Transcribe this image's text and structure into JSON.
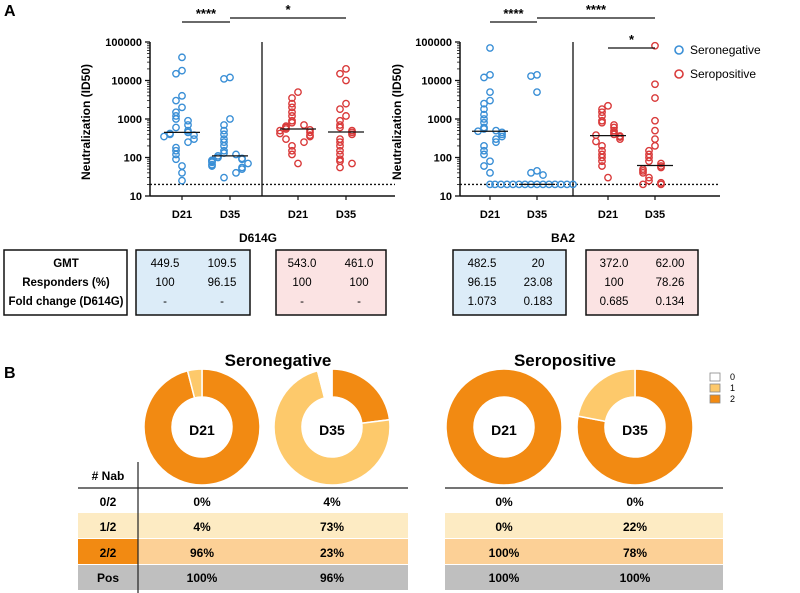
{
  "panel_a": {
    "label": "A",
    "legend": [
      {
        "name": "Seronegative",
        "color": "#3a8fd6"
      },
      {
        "name": "Seropositive",
        "color": "#d93a3a"
      }
    ],
    "tables": [
      {
        "title": "D614G",
        "row_labels": [
          "GMT",
          "Responders (%)",
          "Fold change (D614G)"
        ],
        "seronegative": [
          [
            "449.5",
            "109.5"
          ],
          [
            "100",
            "96.15"
          ],
          [
            "-",
            "-"
          ]
        ],
        "seropositive": [
          [
            "543.0",
            "461.0"
          ],
          [
            "100",
            "100"
          ],
          [
            "-",
            "-"
          ]
        ]
      },
      {
        "title": "BA2",
        "seronegative": [
          [
            "482.5",
            "20"
          ],
          [
            "96.15",
            "23.08"
          ],
          [
            "1.073",
            "0.183"
          ]
        ],
        "seropositive": [
          [
            "372.0",
            "62.00"
          ],
          [
            "100",
            "78.26"
          ],
          [
            "0.685",
            "0.134"
          ]
        ]
      }
    ]
  },
  "panel_b": {
    "label": "B",
    "legend": [
      {
        "name": "0",
        "color": "#ffffff"
      },
      {
        "name": "1",
        "color": "#fdc96b"
      },
      {
        "name": "2",
        "color": "#f28a12"
      }
    ],
    "row_header": "# Nab",
    "row_labels": [
      "0/2",
      "1/2",
      "2/2",
      "Pos"
    ],
    "groups": [
      {
        "title": "Seronegative",
        "donuts": [
          {
            "label": "D21",
            "values": [
              0,
              4,
              96
            ]
          },
          {
            "label": "D35",
            "values": [
              4,
              73,
              23
            ]
          }
        ],
        "table": [
          [
            "0%",
            "4%"
          ],
          [
            "4%",
            "73%"
          ],
          [
            "96%",
            "23%"
          ],
          [
            "100%",
            "96%"
          ]
        ]
      },
      {
        "title": "Seropositive",
        "donuts": [
          {
            "label": "D21",
            "values": [
              0,
              0,
              100
            ]
          },
          {
            "label": "D35",
            "values": [
              0,
              22,
              78
            ]
          }
        ],
        "table": [
          [
            "0%",
            "0%"
          ],
          [
            "0%",
            "22%"
          ],
          [
            "100%",
            "78%"
          ],
          [
            "100%",
            "100%"
          ]
        ]
      }
    ]
  },
  "chart_data": [
    {
      "type": "scatter",
      "title": "D614G",
      "ylabel": "Neutralization (ID50)",
      "yscale": "log",
      "ylim": [
        10,
        100000
      ],
      "yticks": [
        "10",
        "100",
        "1000",
        "10000",
        "100000"
      ],
      "threshold": 20,
      "categories": [
        "D21",
        "D35",
        "D21",
        "D35"
      ],
      "groups": [
        {
          "name": "Seronegative",
          "day": "D21",
          "median": 450,
          "values": [
            40000,
            18000,
            15000,
            4000,
            3000,
            2000,
            1500,
            1200,
            1000,
            900,
            700,
            600,
            500,
            450,
            420,
            400,
            380,
            350,
            300,
            250,
            180,
            150,
            120,
            90,
            60,
            40,
            25
          ]
        },
        {
          "name": "Seronegative",
          "day": "D35",
          "median": 110,
          "values": [
            12000,
            11000,
            1000,
            700,
            500,
            400,
            300,
            250,
            200,
            150,
            130,
            120,
            110,
            100,
            95,
            90,
            85,
            80,
            75,
            70,
            65,
            60,
            55,
            50,
            40,
            30
          ]
        },
        {
          "name": "Seropositive",
          "day": "D21",
          "median": 550,
          "values": [
            5000,
            3500,
            2500,
            2000,
            1500,
            1200,
            900,
            800,
            700,
            650,
            600,
            550,
            520,
            500,
            450,
            420,
            380,
            350,
            300,
            250,
            200,
            150,
            120,
            70
          ]
        },
        {
          "name": "Seropositive",
          "day": "D35",
          "median": 460,
          "values": [
            20000,
            15000,
            10000,
            2500,
            1800,
            1200,
            900,
            700,
            600,
            500,
            450,
            400,
            300,
            250,
            200,
            150,
            120,
            90,
            80,
            70,
            55
          ]
        }
      ],
      "significance": [
        {
          "label": "****",
          "from": 0,
          "to": 1
        },
        {
          "label": "*",
          "from": 1,
          "to": 3
        }
      ]
    },
    {
      "type": "scatter",
      "title": "BA2",
      "ylabel": "Neutralization (ID50)",
      "yscale": "log",
      "ylim": [
        10,
        100000
      ],
      "yticks": [
        "10",
        "100",
        "1000",
        "10000",
        "100000"
      ],
      "threshold": 20,
      "categories": [
        "D21",
        "D35",
        "D21",
        "D35"
      ],
      "groups": [
        {
          "name": "Seronegative",
          "day": "D21",
          "median": 480,
          "values": [
            70000,
            14000,
            12000,
            5000,
            3000,
            2500,
            1800,
            1300,
            1000,
            800,
            600,
            550,
            500,
            480,
            450,
            400,
            350,
            300,
            250,
            200,
            150,
            120,
            80,
            60,
            40,
            20
          ]
        },
        {
          "name": "Seronegative",
          "day": "D35",
          "median": 20,
          "values": [
            14000,
            13000,
            5000,
            45,
            40,
            35,
            20,
            20,
            20,
            20,
            20,
            20,
            20,
            20,
            20,
            20,
            20,
            20,
            20,
            20
          ]
        },
        {
          "name": "Seropositive",
          "day": "D21",
          "median": 370,
          "values": [
            2200,
            1800,
            1500,
            1200,
            900,
            800,
            700,
            600,
            500,
            450,
            400,
            380,
            360,
            340,
            300,
            260,
            200,
            150,
            120,
            100,
            80,
            60,
            30
          ]
        },
        {
          "name": "Seropositive",
          "day": "D35",
          "median": 62,
          "values": [
            80000,
            8000,
            3500,
            900,
            500,
            300,
            200,
            150,
            120,
            100,
            80,
            70,
            60,
            55,
            50,
            45,
            40,
            30,
            25,
            22,
            20,
            20
          ]
        }
      ],
      "significance": [
        {
          "label": "****",
          "from": 0,
          "to": 1
        },
        {
          "label": "****",
          "from": 1,
          "to": 3
        },
        {
          "label": "*",
          "from": 2,
          "to": 3
        }
      ]
    }
  ]
}
